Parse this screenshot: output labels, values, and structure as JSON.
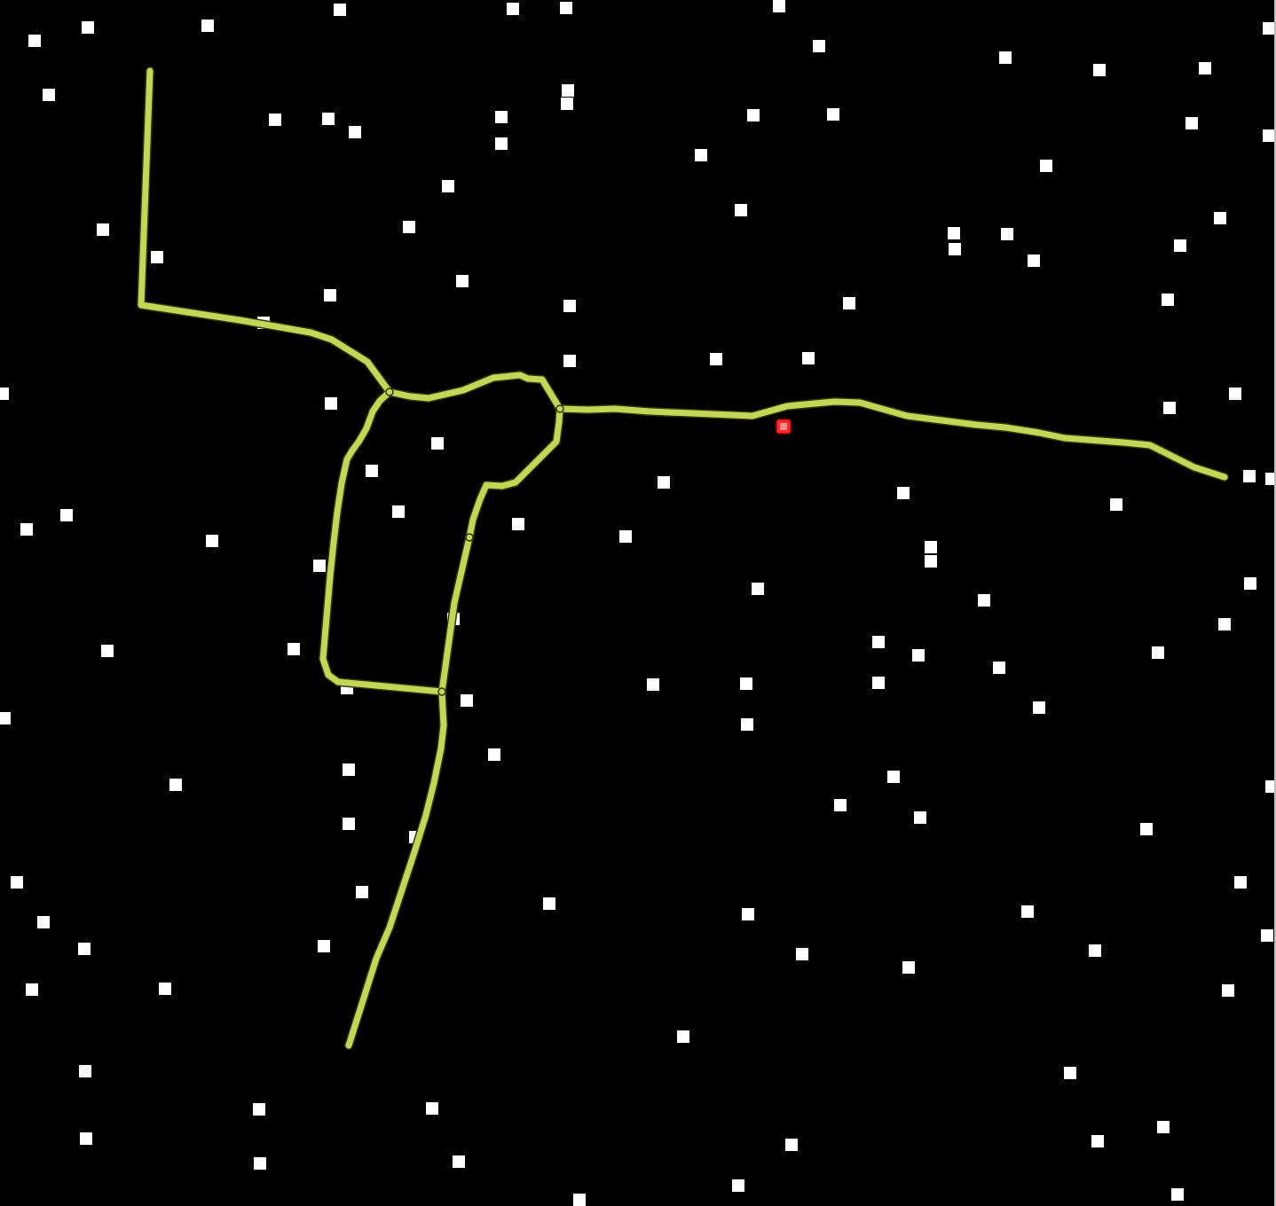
{
  "map": {
    "background": "#000000",
    "route_color": "#c4d655",
    "route_outline_color": "#2f3a12",
    "marker_color": "#ffffff",
    "selected_marker_color": "#ff2a2a",
    "selected_marker_inner": "#ff8a8a",
    "route_segments": 9,
    "junction_nodes": 5,
    "point_markers": 131,
    "selected_markers": 1
  }
}
